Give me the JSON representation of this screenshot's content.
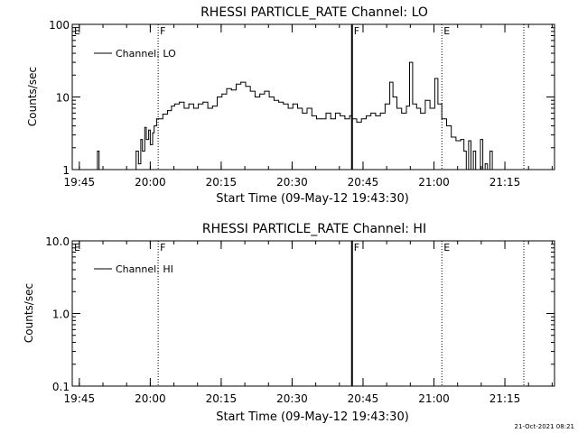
{
  "footer_date": "21-Oct-2021 08:21",
  "colors": {
    "background": "#ffffff",
    "foreground": "#000000"
  },
  "chart_data": [
    {
      "type": "line",
      "title": "RHESSI PARTICLE_RATE Channel: LO",
      "xlabel": "Start Time (09-May-12 19:43:30)",
      "ylabel": "Counts/sec",
      "y_scale": "log",
      "ylim": [
        1,
        100
      ],
      "xlim": [
        "19:43:30",
        "21:25:30"
      ],
      "x_ticks": [
        "19:45",
        "20:00",
        "20:15",
        "20:30",
        "20:45",
        "21:00",
        "21:15"
      ],
      "y_ticks": [
        "1",
        "10",
        "100"
      ],
      "legend": {
        "entries": [
          "Channel: LO"
        ],
        "placement": "top-left"
      },
      "markers": [
        {
          "label": "E",
          "time": "19:43:30",
          "style": "dotted"
        },
        {
          "label": "F",
          "time": "20:01:40",
          "style": "dotted"
        },
        {
          "label": "F",
          "time": "20:42:40",
          "style": "solid"
        },
        {
          "label": "E",
          "time": "21:01:40",
          "style": "dotted"
        },
        {
          "label": "",
          "time": "21:19:00",
          "style": "dotted"
        }
      ],
      "series": [
        {
          "name": "Channel: LO",
          "x": [
            "19:48:30",
            "19:48:50",
            "19:49:10",
            "19:56:40",
            "19:57:00",
            "19:57:30",
            "19:58:00",
            "19:58:20",
            "19:58:50",
            "19:59:10",
            "19:59:40",
            "20:00:00",
            "20:00:30",
            "20:00:50",
            "20:01:20",
            "20:01:50",
            "20:02:40",
            "20:03:40",
            "20:04:30",
            "20:05:10",
            "20:06:10",
            "20:07:10",
            "20:08:10",
            "20:09:10",
            "20:10:10",
            "20:11:10",
            "20:12:10",
            "20:13:10",
            "20:14:10",
            "20:15:10",
            "20:16:10",
            "20:17:10",
            "20:18:10",
            "20:19:10",
            "20:20:10",
            "20:21:10",
            "20:22:10",
            "20:23:10",
            "20:24:10",
            "20:25:10",
            "20:26:10",
            "20:27:10",
            "20:28:10",
            "20:29:10",
            "20:30:10",
            "20:31:10",
            "20:32:10",
            "20:33:10",
            "20:34:10",
            "20:35:10",
            "20:36:10",
            "20:37:10",
            "20:38:10",
            "20:39:10",
            "20:40:10",
            "20:41:10",
            "20:42:10",
            "20:42:40",
            "20:43:40",
            "20:44:40",
            "20:45:40",
            "20:46:40",
            "20:47:40",
            "20:48:40",
            "20:49:40",
            "20:50:40",
            "20:51:20",
            "20:52:10",
            "20:53:10",
            "20:54:10",
            "20:54:50",
            "20:55:30",
            "20:56:20",
            "20:57:10",
            "20:58:10",
            "20:59:10",
            "21:00:10",
            "21:00:50",
            "21:01:40",
            "21:02:40",
            "21:03:40",
            "21:04:40",
            "21:05:40",
            "21:06:20",
            "21:06:50",
            "21:07:20",
            "21:07:50",
            "21:08:20",
            "21:08:50",
            "21:09:20",
            "21:09:50",
            "21:10:20",
            "21:10:50",
            "21:11:20",
            "21:11:50",
            "21:12:20"
          ],
          "values": [
            1,
            1.8,
            1,
            1,
            1.8,
            1.2,
            2.6,
            1.8,
            3.8,
            2.6,
            3.5,
            2.2,
            3.2,
            4,
            5,
            5,
            5.8,
            6.5,
            7.5,
            8,
            8.5,
            7,
            8,
            7,
            8,
            8.5,
            7,
            7.5,
            10,
            11,
            13,
            12.5,
            15,
            16,
            14,
            12,
            10,
            11,
            12,
            10,
            9,
            8.5,
            8,
            7,
            8,
            7,
            6,
            7,
            5.5,
            5,
            5,
            6,
            5,
            6,
            5.5,
            5,
            5.5,
            5,
            4.5,
            5,
            5.5,
            6,
            5.5,
            6,
            8,
            16,
            10,
            7,
            6,
            7.5,
            30,
            8,
            7,
            6,
            9,
            7,
            18,
            8,
            5,
            4,
            2.8,
            2.5,
            2.6,
            1.8,
            1,
            2.5,
            1,
            1.8,
            1,
            1,
            2.6,
            1,
            1.2,
            1,
            1.8,
            1
          ]
        }
      ]
    },
    {
      "type": "line",
      "title": "RHESSI PARTICLE_RATE Channel: HI",
      "xlabel": "Start Time (09-May-12 19:43:30)",
      "ylabel": "Counts/sec",
      "y_scale": "log",
      "ylim": [
        0.1,
        10
      ],
      "xlim": [
        "19:43:30",
        "21:25:30"
      ],
      "x_ticks": [
        "19:45",
        "20:00",
        "20:15",
        "20:30",
        "20:45",
        "21:00",
        "21:15"
      ],
      "y_ticks": [
        "0.1",
        "1.0",
        "10.0"
      ],
      "legend": {
        "entries": [
          "Channel: HI"
        ],
        "placement": "top-left"
      },
      "markers": [
        {
          "label": "E",
          "time": "19:43:30",
          "style": "dotted"
        },
        {
          "label": "F",
          "time": "20:01:40",
          "style": "dotted"
        },
        {
          "label": "F",
          "time": "20:42:40",
          "style": "solid"
        },
        {
          "label": "E",
          "time": "21:01:40",
          "style": "dotted"
        },
        {
          "label": "",
          "time": "21:19:00",
          "style": "dotted"
        }
      ],
      "series": [
        {
          "name": "Channel: HI",
          "x": [],
          "values": []
        }
      ]
    }
  ]
}
